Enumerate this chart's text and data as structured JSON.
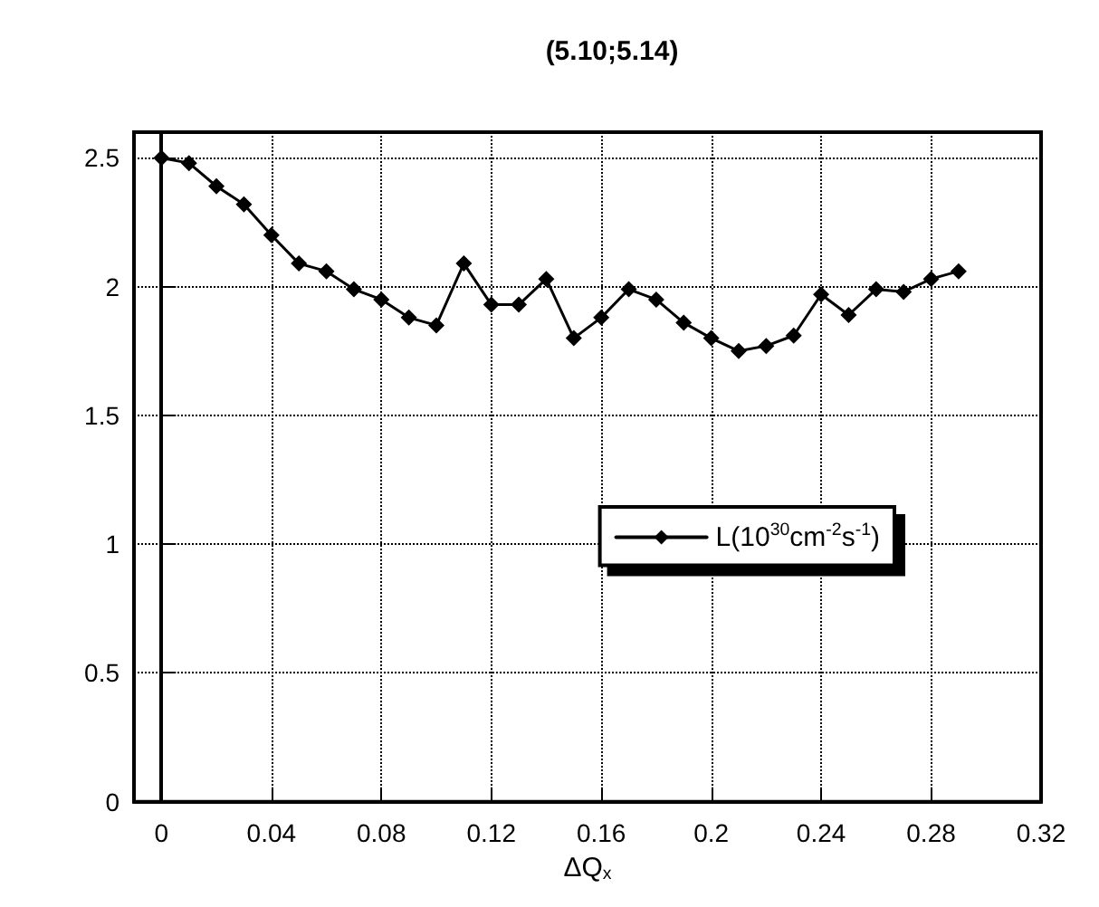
{
  "chart_data": {
    "type": "line",
    "title": "(5.10;5.14)",
    "xlabel": "ΔQ$_{x}$",
    "x": [
      0,
      0.01,
      0.02,
      0.03,
      0.04,
      0.05,
      0.06,
      0.07,
      0.08,
      0.09,
      0.1,
      0.11,
      0.12,
      0.13,
      0.14,
      0.15,
      0.16,
      0.17,
      0.18,
      0.19,
      0.2,
      0.21,
      0.22,
      0.23,
      0.24,
      0.25,
      0.26,
      0.27,
      0.28,
      0.29
    ],
    "series": [
      {
        "name": "L(10$^{30}$cm$^{-2}$s$^{-1}$)",
        "color": "#000000",
        "values": [
          2.5,
          2.48,
          2.39,
          2.32,
          2.2,
          2.09,
          2.06,
          1.99,
          1.95,
          1.88,
          1.85,
          2.09,
          1.93,
          1.93,
          2.03,
          1.8,
          1.88,
          1.99,
          1.95,
          1.86,
          1.8,
          1.75,
          1.77,
          1.81,
          1.97,
          1.89,
          1.99,
          1.98,
          2.03,
          2.06
        ]
      }
    ],
    "xlim": [
      -0.01,
      0.32
    ],
    "xticks": [
      0,
      0.04,
      0.08,
      0.12,
      0.16,
      0.2,
      0.24,
      0.28,
      0.32
    ],
    "ylim": [
      0,
      2.6
    ],
    "yticks": [
      0,
      0.5,
      1,
      1.5,
      2,
      2.5
    ],
    "grid": true,
    "legend": "right",
    "marker": "diamond",
    "line_style": "solid"
  }
}
